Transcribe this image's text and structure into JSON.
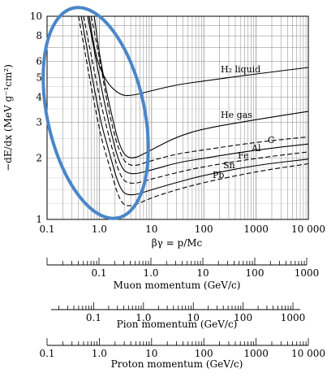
{
  "chart_data": {
    "type": "line",
    "title": "",
    "xlabel": "βγ = p/Mc",
    "ylabel": "−dE/dx (MeV g⁻¹cm²)",
    "xscale": "log",
    "yscale": "log",
    "xlim": [
      0.1,
      10000
    ],
    "ylim": [
      1,
      10
    ],
    "xticks": [
      {
        "v": 0.1,
        "label": "0.1"
      },
      {
        "v": 1,
        "label": "1.0"
      },
      {
        "v": 10,
        "label": "10"
      },
      {
        "v": 100,
        "label": "100"
      },
      {
        "v": 1000,
        "label": "1000"
      },
      {
        "v": 10000,
        "label": "10 000"
      }
    ],
    "yticks": [
      {
        "v": 1,
        "label": "1"
      },
      {
        "v": 2,
        "label": "2"
      },
      {
        "v": 3,
        "label": "3"
      },
      {
        "v": 4,
        "label": "4"
      },
      {
        "v": 5,
        "label": "5"
      },
      {
        "v": 6,
        "label": "6"
      },
      {
        "v": 8,
        "label": "8"
      },
      {
        "v": 10,
        "label": "10"
      }
    ],
    "grid": true,
    "series": [
      {
        "name": "H₂ liquid",
        "dash": false,
        "points": [
          [
            0.64,
            10
          ],
          [
            0.8,
            7.0
          ],
          [
            1.0,
            5.6
          ],
          [
            1.5,
            4.6
          ],
          [
            2.5,
            4.1
          ],
          [
            4,
            4.05
          ],
          [
            10,
            4.3
          ],
          [
            30,
            4.6
          ],
          [
            100,
            4.8
          ],
          [
            1000,
            5.2
          ],
          [
            10000,
            5.6
          ]
        ]
      },
      {
        "name": "He gas",
        "dash": false,
        "points": [
          [
            0.8,
            10
          ],
          [
            1.0,
            6.5
          ],
          [
            1.5,
            3.8
          ],
          [
            2.5,
            2.2
          ],
          [
            4,
            1.95
          ],
          [
            10,
            2.2
          ],
          [
            30,
            2.55
          ],
          [
            100,
            2.8
          ],
          [
            1000,
            3.1
          ],
          [
            10000,
            3.4
          ]
        ]
      },
      {
        "name": "C",
        "dash": true,
        "points": [
          [
            0.7,
            10
          ],
          [
            1.0,
            6.3
          ],
          [
            1.5,
            3.4
          ],
          [
            2.5,
            2.05
          ],
          [
            4,
            1.8
          ],
          [
            10,
            1.95
          ],
          [
            30,
            2.1
          ],
          [
            100,
            2.2
          ],
          [
            1000,
            2.4
          ],
          [
            10000,
            2.55
          ]
        ]
      },
      {
        "name": "Al",
        "dash": false,
        "points": [
          [
            0.6,
            10
          ],
          [
            1.0,
            5.0
          ],
          [
            1.5,
            3.0
          ],
          [
            2.5,
            1.8
          ],
          [
            4,
            1.65
          ],
          [
            10,
            1.75
          ],
          [
            30,
            1.9
          ],
          [
            100,
            2.0
          ],
          [
            1000,
            2.2
          ],
          [
            10000,
            2.35
          ]
        ]
      },
      {
        "name": "Fe",
        "dash": true,
        "points": [
          [
            0.5,
            10
          ],
          [
            1.0,
            4.0
          ],
          [
            1.5,
            2.6
          ],
          [
            2.5,
            1.6
          ],
          [
            4,
            1.48
          ],
          [
            10,
            1.58
          ],
          [
            30,
            1.7
          ],
          [
            100,
            1.82
          ],
          [
            1000,
            2.0
          ],
          [
            10000,
            2.15
          ]
        ]
      },
      {
        "name": "Sn",
        "dash": false,
        "points": [
          [
            0.45,
            10
          ],
          [
            1.0,
            3.2
          ],
          [
            1.5,
            2.2
          ],
          [
            2.5,
            1.38
          ],
          [
            4,
            1.3
          ],
          [
            10,
            1.4
          ],
          [
            30,
            1.52
          ],
          [
            100,
            1.65
          ],
          [
            1000,
            1.85
          ],
          [
            10000,
            1.98
          ]
        ]
      },
      {
        "name": "Pb",
        "dash": true,
        "points": [
          [
            0.4,
            10
          ],
          [
            1.0,
            2.7
          ],
          [
            1.5,
            1.9
          ],
          [
            2.5,
            1.2
          ],
          [
            4,
            1.15
          ],
          [
            10,
            1.28
          ],
          [
            30,
            1.4
          ],
          [
            100,
            1.52
          ],
          [
            1000,
            1.72
          ],
          [
            10000,
            1.88
          ]
        ]
      }
    ],
    "highlight": {
      "shape": "ellipse",
      "color": "#4a86c8"
    },
    "secondary_axes": [
      {
        "title": "Muon momentum (GeV/c)",
        "xlim": [
          0.01,
          1000
        ],
        "ticks": [
          {
            "v": 0.1,
            "label": "0.1"
          },
          {
            "v": 1,
            "label": "1.0"
          },
          {
            "v": 10,
            "label": "10"
          },
          {
            "v": 100,
            "label": "100"
          },
          {
            "v": 1000,
            "label": "1000"
          }
        ]
      },
      {
        "title": "Pion momentum (GeV/c)",
        "xlim": [
          0.014,
          1400
        ],
        "ticks": [
          {
            "v": 0.1,
            "label": "0.1"
          },
          {
            "v": 1,
            "label": "1.0"
          },
          {
            "v": 10,
            "label": "10"
          },
          {
            "v": 100,
            "label": "100"
          },
          {
            "v": 1000,
            "label": "1000"
          }
        ]
      },
      {
        "title": "Proton momentum (GeV/c)",
        "xlim": [
          0.1,
          10000
        ],
        "ticks": [
          {
            "v": 0.1,
            "label": "0.1"
          },
          {
            "v": 1,
            "label": "1.0"
          },
          {
            "v": 10,
            "label": "10"
          },
          {
            "v": 100,
            "label": "100"
          },
          {
            "v": 1000,
            "label": "1000"
          },
          {
            "v": 10000,
            "label": "10 000"
          }
        ]
      }
    ]
  }
}
